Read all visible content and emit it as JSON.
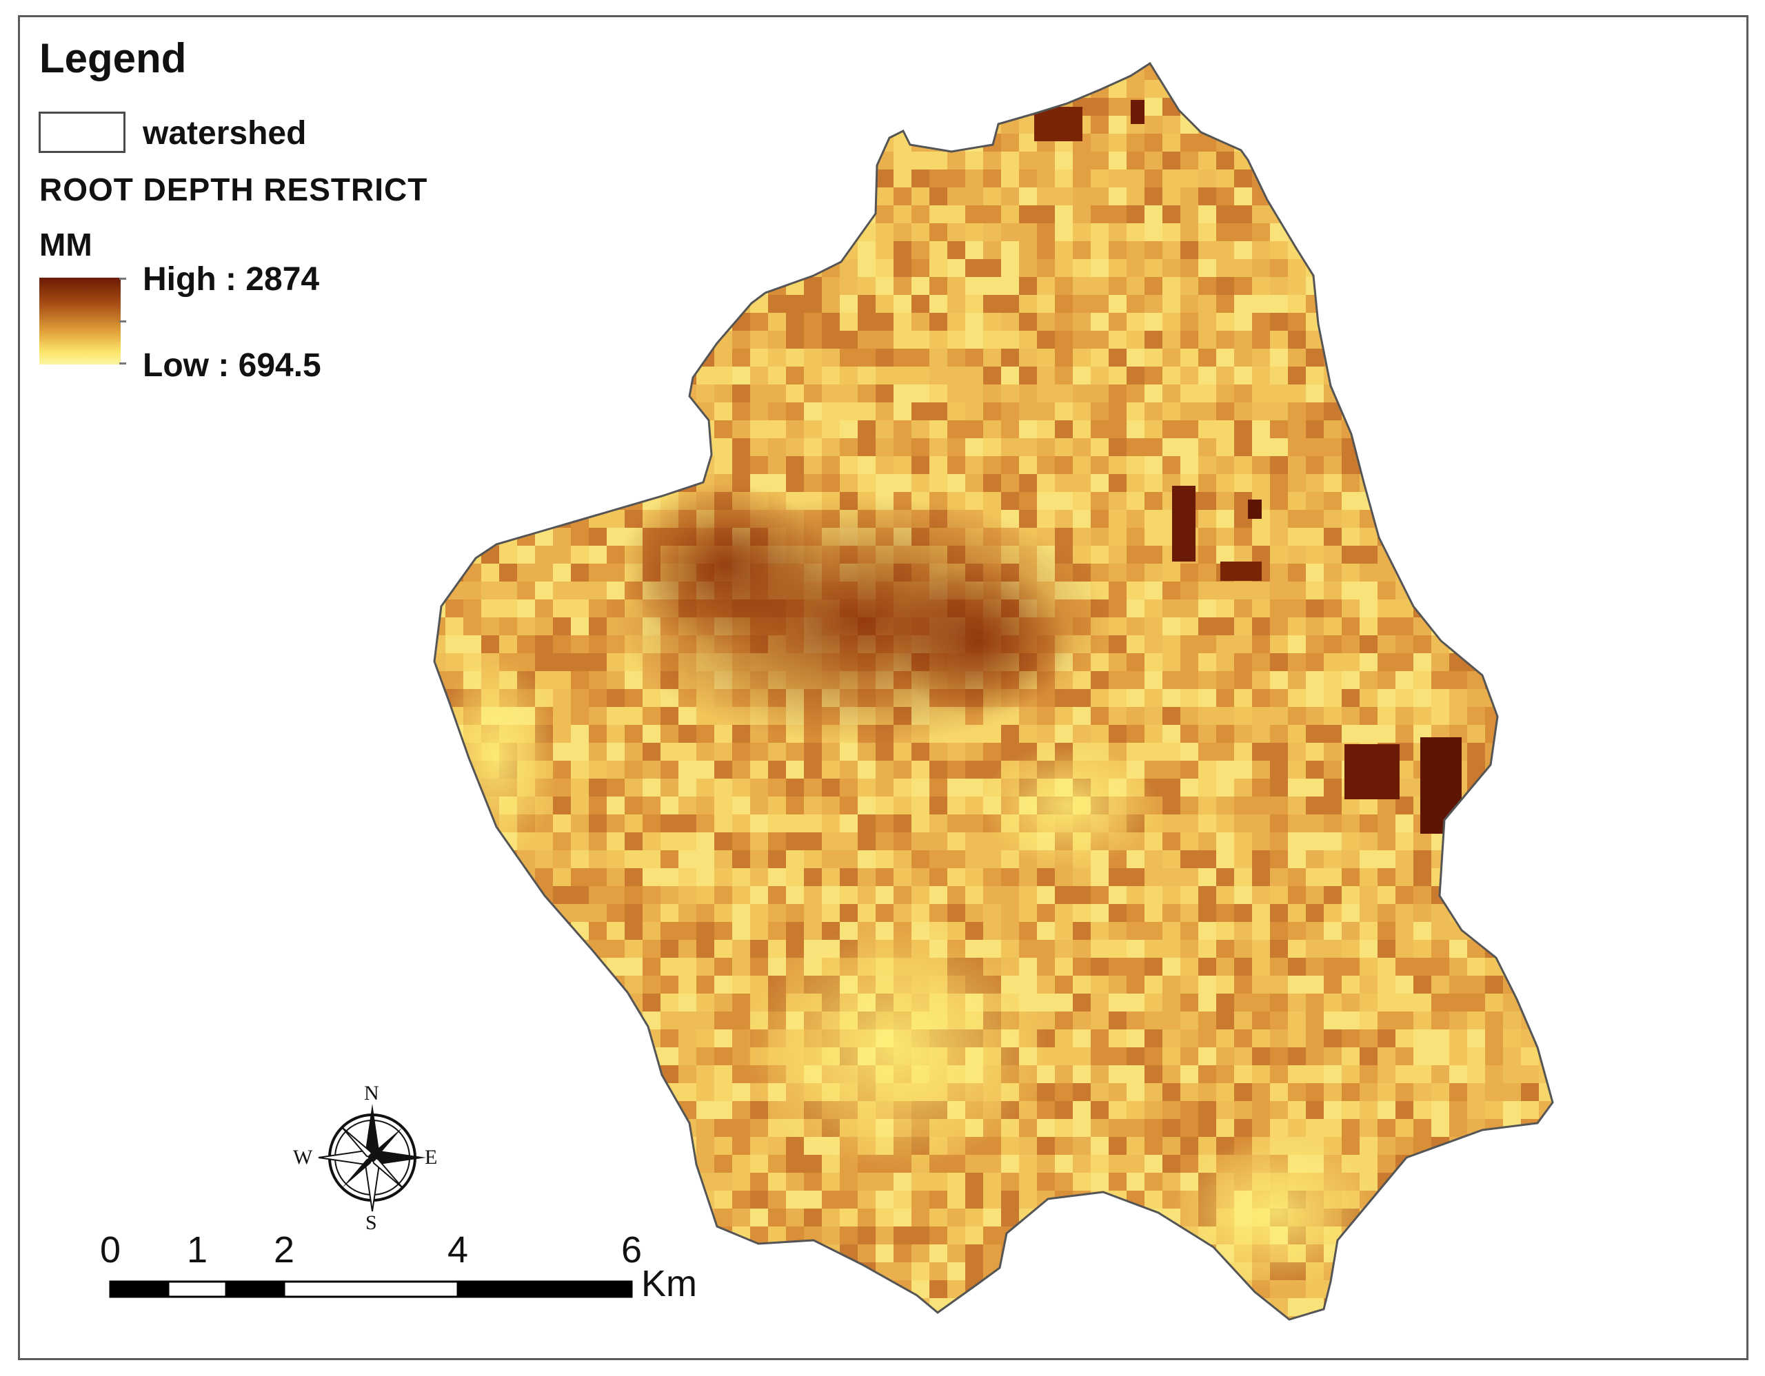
{
  "legend": {
    "title": "Legend",
    "watershed_label": "watershed",
    "layer_title": "ROOT DEPTH RESTRICT",
    "unit": "MM",
    "high_label": "High : 2874",
    "low_label": "Low : 694.5",
    "high_value": 2874,
    "low_value": 694.5,
    "ramp_colors": [
      "#6b1a05",
      "#a24a13",
      "#e2a03a",
      "#fbe46a",
      "#fdf6a0"
    ]
  },
  "scale_bar": {
    "ticks": [
      "0",
      "1",
      "2",
      "4",
      "6"
    ],
    "unit": "Km"
  },
  "compass": {
    "north": "N",
    "south": "S",
    "east": "E",
    "west": "W"
  }
}
